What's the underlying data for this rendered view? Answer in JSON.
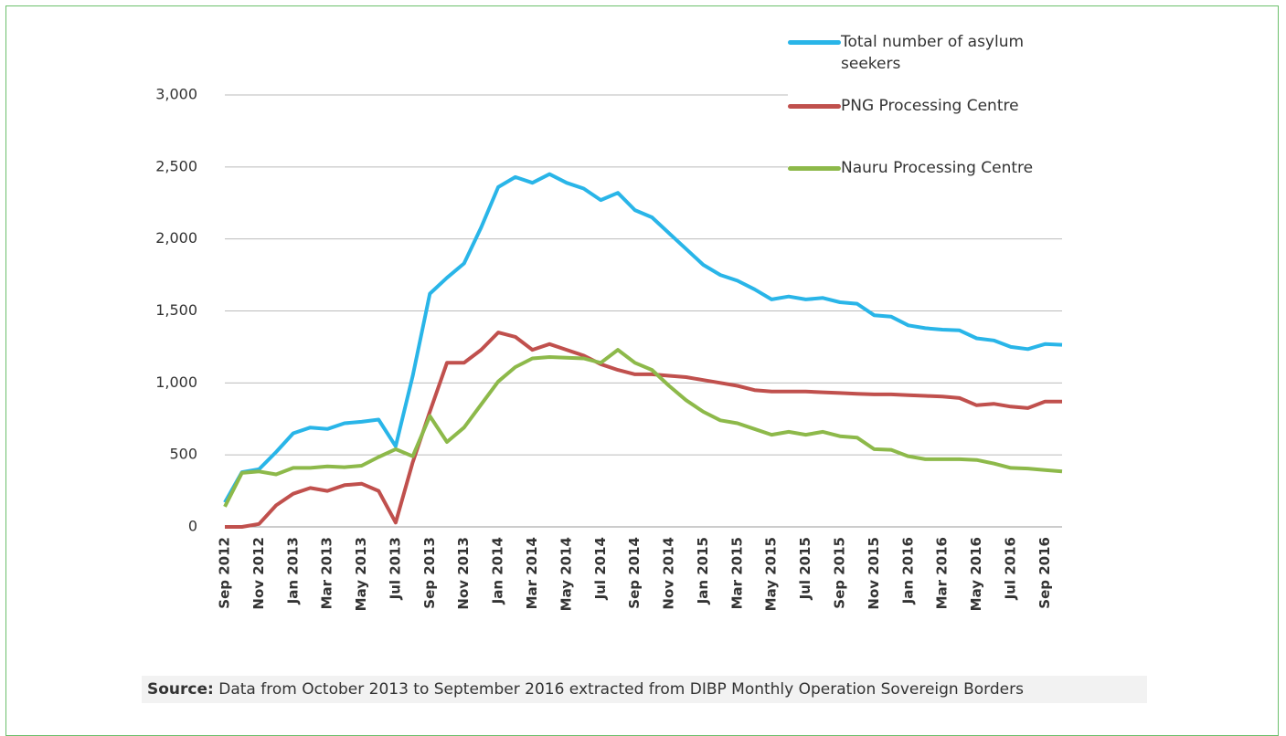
{
  "chart_data": {
    "type": "line",
    "categories": [
      "Sep 2012",
      null,
      "Nov 2012",
      null,
      "Jan 2013",
      null,
      "Mar 2013",
      null,
      "May 2013",
      null,
      "Jul 2013",
      null,
      "Sep 2013",
      null,
      "Nov 2013",
      null,
      "Jan 2014",
      null,
      "Mar 2014",
      null,
      "May 2014",
      null,
      "Jul 2014",
      null,
      "Sep 2014",
      null,
      "Nov 2014",
      null,
      "Jan 2015",
      null,
      "Mar 2015",
      null,
      "May 2015",
      null,
      "Jul 2015",
      null,
      "Sep 2015",
      null,
      "Nov 2015",
      null,
      "Jan 2016",
      null,
      "Mar 2016",
      null,
      "May 2016",
      null,
      "Jul 2016",
      null,
      "Sep 2016",
      null
    ],
    "series": [
      {
        "name": "Total number of asylum seekers",
        "color": "#29b5e8",
        "values": [
          170,
          380,
          400,
          520,
          650,
          690,
          680,
          720,
          730,
          745,
          560,
          1050,
          1620,
          1730,
          1830,
          2080,
          2360,
          2430,
          2390,
          2450,
          2390,
          2350,
          2270,
          2320,
          2200,
          2150,
          2040,
          1930,
          1820,
          1750,
          1710,
          1650,
          1580,
          1600,
          1580,
          1590,
          1560,
          1550,
          1470,
          1460,
          1400,
          1380,
          1370,
          1365,
          1310,
          1295,
          1250,
          1235,
          1270,
          1265
        ]
      },
      {
        "name": "PNG Processing Centre",
        "color": "#c0504d",
        "values": [
          0,
          0,
          20,
          150,
          230,
          270,
          250,
          290,
          300,
          250,
          30,
          450,
          800,
          1140,
          1140,
          1230,
          1350,
          1320,
          1230,
          1270,
          1230,
          1190,
          1130,
          1090,
          1060,
          1060,
          1050,
          1040,
          1020,
          1000,
          980,
          950,
          940,
          940,
          940,
          935,
          930,
          925,
          920,
          920,
          915,
          910,
          905,
          895,
          845,
          855,
          835,
          825,
          870,
          870
        ]
      },
      {
        "name": "Nauru Processing Centre",
        "color": "#8db94a",
        "values": [
          140,
          375,
          385,
          365,
          410,
          410,
          420,
          415,
          425,
          485,
          540,
          490,
          770,
          590,
          690,
          850,
          1010,
          1110,
          1170,
          1180,
          1175,
          1170,
          1140,
          1230,
          1140,
          1090,
          980,
          880,
          800,
          740,
          720,
          680,
          640,
          660,
          640,
          660,
          630,
          620,
          540,
          535,
          490,
          470,
          470,
          470,
          465,
          440,
          410,
          405,
          395,
          385
        ]
      }
    ],
    "ylim": [
      0,
      3000
    ],
    "yticks": [
      0,
      500,
      {
        "value": 1000,
        "label": "1,000"
      },
      {
        "value": 1500,
        "label": "1,500"
      },
      {
        "value": 2000,
        "label": "2,000"
      },
      {
        "value": 2500,
        "label": "2,500"
      },
      {
        "value": 3000,
        "label": "3,000"
      }
    ],
    "grid": true,
    "legend": "top-right",
    "source_label": "Source:",
    "source_text": "Data from October 2013 to September 2016 extracted from DIBP Monthly Operation Sovereign Borders"
  }
}
